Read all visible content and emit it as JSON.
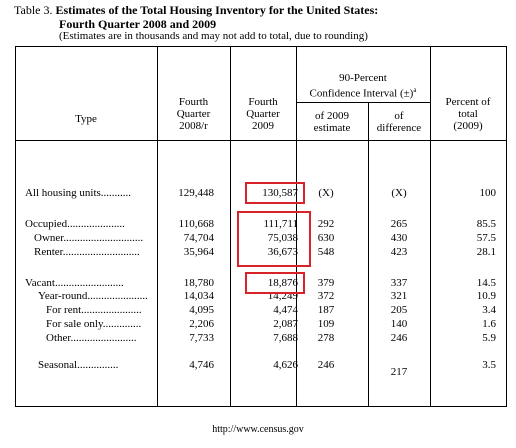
{
  "caption": {
    "table_no": "Table 3.",
    "title_line1": "Estimates of the Total Housing Inventory for the United States:",
    "title_line2": "Fourth Quarter 2008 and 2009",
    "note": "(Estimates are in thousands and may not add to total, due to rounding)"
  },
  "headers": {
    "type": "Type",
    "q2008": [
      "Fourth",
      "Quarter",
      "2008/r"
    ],
    "q2009": [
      "Fourth",
      "Quarter",
      "2009"
    ],
    "ci_group": [
      "90-Percent",
      "Confidence Interval (±)"
    ],
    "ci_sup": "a",
    "ci_2009": [
      "of 2009",
      "estimate"
    ],
    "ci_diff": [
      "of",
      "difference"
    ],
    "pct": [
      "Percent of",
      "total",
      "(2009)"
    ]
  },
  "rows": [
    {
      "label": "All housing units",
      "dots": "...........",
      "q2008": "129,448",
      "q2009": "130,587",
      "ci2009": "(X)",
      "cidiff": "(X)",
      "pct": "100"
    },
    {
      "label": "Occupied",
      "dots": ".....................",
      "q2008": "110,668",
      "q2009": "111,711",
      "ci2009": "292",
      "cidiff": "265",
      "pct": "85.5"
    },
    {
      "label": "Owner",
      "dots": ".............................",
      "q2008": "74,704",
      "q2009": "75,038",
      "ci2009": "630",
      "cidiff": "430",
      "pct": "57.5"
    },
    {
      "label": "Renter",
      "dots": "............................",
      "q2008": "35,964",
      "q2009": "36,673",
      "ci2009": "548",
      "cidiff": "423",
      "pct": "28.1"
    },
    {
      "label": "Vacant",
      "dots": ".........................",
      "q2008": "18,780",
      "q2009": "18,876",
      "ci2009": "379",
      "cidiff": "337",
      "pct": "14.5"
    },
    {
      "label": "Year-round",
      "dots": "......................",
      "q2008": "14,034",
      "q2009": "14,249",
      "ci2009": "372",
      "cidiff": "321",
      "pct": "10.9"
    },
    {
      "label": "For rent",
      "dots": "......................",
      "q2008": "4,095",
      "q2009": "4,474",
      "ci2009": "187",
      "cidiff": "205",
      "pct": "3.4"
    },
    {
      "label": "For sale only",
      "dots": "..............",
      "q2008": "2,206",
      "q2009": "2,087",
      "ci2009": "109",
      "cidiff": "140",
      "pct": "1.6"
    },
    {
      "label": "Other",
      "dots": "........................",
      "q2008": "7,733",
      "q2009": "7,688",
      "ci2009": "278",
      "cidiff": "246",
      "pct": "5.9"
    },
    {
      "label": "Seasonal",
      "dots": "...............",
      "q2008": "4,746",
      "q2009": "4,626",
      "ci2009": "246",
      "cidiff": "217",
      "pct": "3.5"
    }
  ],
  "highlight_color": "#d8232a",
  "footer": "http://www.census.gov"
}
